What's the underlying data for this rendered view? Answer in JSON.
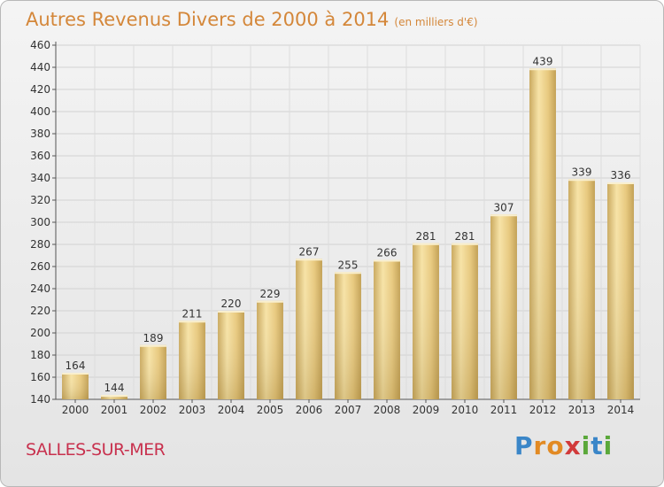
{
  "header": {
    "title": "Autres Revenus Divers de 2000 à 2014",
    "subtitle": "(en milliers d'€)"
  },
  "footer": {
    "city": "SALLES-SUR-MER",
    "logo_text": "Proxiti"
  },
  "colors": {
    "title": "#d4873a",
    "city": "#c8314e",
    "bar_light": "#f6dfa0",
    "bar_dark": "#c9aa5c"
  },
  "chart_data": {
    "type": "bar",
    "title": "Autres Revenus Divers de 2000 à 2014",
    "subtitle": "(en milliers d'€)",
    "xlabel": "",
    "ylabel": "",
    "categories": [
      "2000",
      "2001",
      "2002",
      "2003",
      "2004",
      "2005",
      "2006",
      "2007",
      "2008",
      "2009",
      "2010",
      "2011",
      "2012",
      "2013",
      "2014"
    ],
    "values": [
      164,
      144,
      189,
      211,
      220,
      229,
      267,
      255,
      266,
      281,
      281,
      307,
      439,
      339,
      336
    ],
    "ylim": [
      140,
      460
    ],
    "yticks": [
      140,
      160,
      180,
      200,
      220,
      240,
      260,
      280,
      300,
      320,
      340,
      360,
      380,
      400,
      420,
      440,
      460
    ],
    "grid": true
  }
}
